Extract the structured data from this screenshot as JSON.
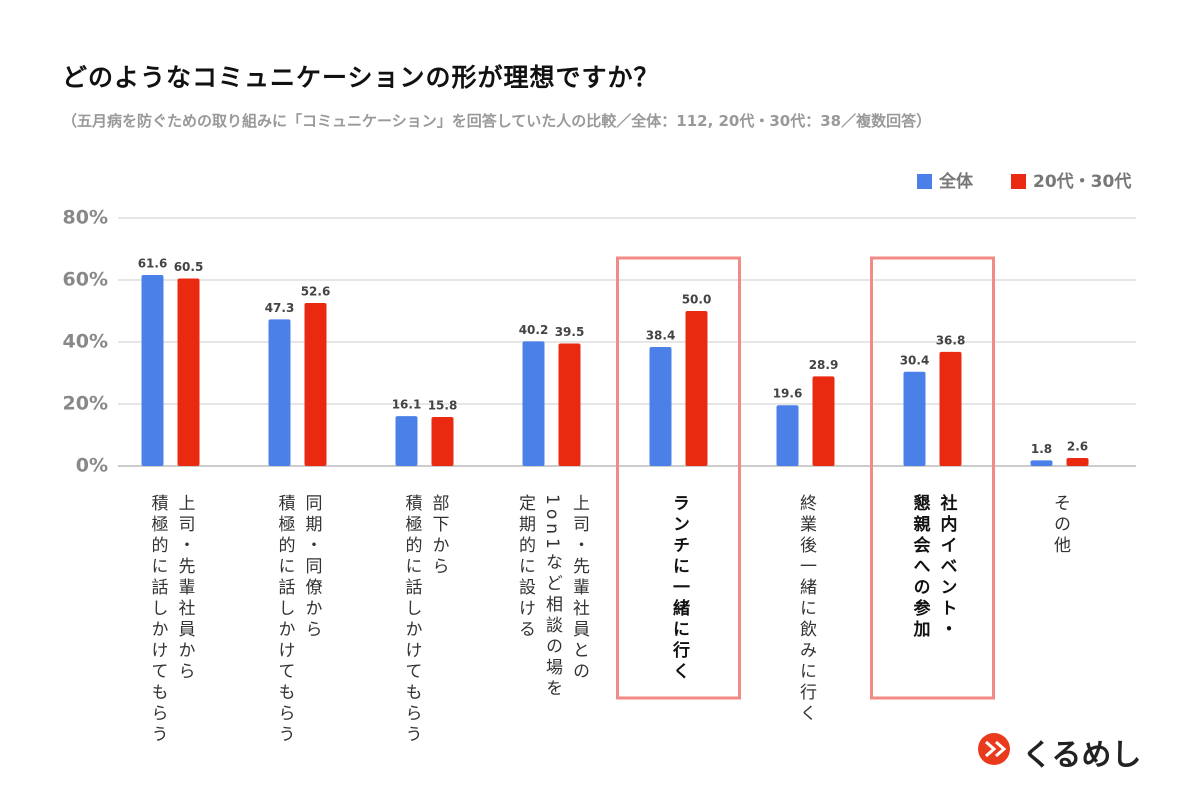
{
  "chart_data": {
    "type": "bar",
    "title": "どのようなコミュニケーションの形が理想ですか？",
    "subtitle": "（五月病を防ぐための取り組みに「コミュニケーション」を回答していた人の比較／全体：112, 20代・30代：38／複数回答）",
    "categories": [
      "上司・先輩社員から\n積極的に話しかけてもらう",
      "同期・同僚から\n積極的に話しかけてもらう",
      "部下から\n積極的に話しかけてもらう",
      "上司・先輩社員との\n1on1など相談の場を\n定期的に設ける",
      "ランチに一緒に行く",
      "終業後一緒に飲みに行く",
      "社内イベント・\n懇親会への参加",
      "その他"
    ],
    "highlighted_categories": [
      4,
      6
    ],
    "series": [
      {
        "name": "全体",
        "color": "#4a80e8",
        "values": [
          61.6,
          47.3,
          16.1,
          40.2,
          38.4,
          19.6,
          30.4,
          1.8
        ],
        "value_labels": [
          "61.6",
          "47.3",
          "16.1",
          "40.2",
          "38.4",
          "19.6",
          "30.4",
          "1.8"
        ]
      },
      {
        "name": "20代・30代",
        "color": "#ea2a10",
        "values": [
          60.5,
          52.6,
          15.8,
          39.5,
          50.0,
          28.9,
          36.8,
          2.6
        ],
        "value_labels": [
          "60.5",
          "52.6",
          "15.8",
          "39.5",
          "50.0",
          "28.9",
          "36.8",
          "2.6"
        ]
      }
    ],
    "ylim": [
      0,
      80
    ],
    "yticks": [
      {
        "value": 0,
        "label": "0%"
      },
      {
        "value": 20,
        "label": "20%"
      },
      {
        "value": 40,
        "label": "40%"
      },
      {
        "value": 60,
        "label": "60%"
      },
      {
        "value": 80,
        "label": "80%"
      }
    ],
    "grid": true,
    "legend": "top-right",
    "brand": "くるめし"
  }
}
